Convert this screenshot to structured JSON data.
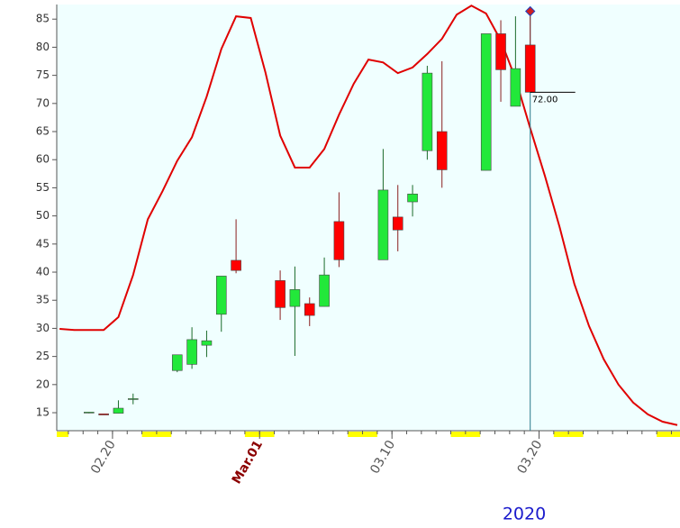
{
  "chart_data": {
    "type": "candlestick",
    "background": "#f0ffff",
    "up_color": "#22e83a",
    "down_color": "#ff0000",
    "x": [
      "2020-02-18",
      "2020-02-19",
      "2020-02-20",
      "2020-02-21",
      "2020-02-24",
      "2020-02-25",
      "2020-02-26",
      "2020-02-27",
      "2020-02-28",
      "2020-03-02",
      "2020-03-03",
      "2020-03-04",
      "2020-03-05",
      "2020-03-06",
      "2020-03-09",
      "2020-03-10",
      "2020-03-11",
      "2020-03-12",
      "2020-03-13",
      "2020-03-16",
      "2020-03-17",
      "2020-03-18",
      "2020-03-19"
    ],
    "open": [
      15.0,
      14.8,
      14.9,
      17.4,
      22.5,
      23.6,
      27.0,
      32.5,
      42.1,
      38.5,
      33.9,
      34.4,
      33.9,
      49.0,
      42.2,
      49.8,
      52.5,
      61.6,
      65.0,
      58.1,
      82.4,
      69.5,
      80.4
    ],
    "high": [
      15.1,
      14.8,
      17.2,
      18.4,
      25.3,
      30.2,
      29.6,
      39.3,
      49.4,
      40.3,
      41.0,
      35.5,
      42.6,
      54.2,
      61.9,
      55.5,
      55.5,
      76.7,
      77.5,
      82.4,
      84.8,
      85.5,
      86.4
    ],
    "low": [
      14.9,
      14.6,
      14.9,
      16.5,
      22.2,
      22.8,
      24.9,
      29.4,
      39.8,
      31.5,
      25.1,
      30.4,
      33.9,
      40.9,
      42.2,
      43.7,
      49.9,
      60.0,
      55.0,
      58.1,
      70.3,
      69.5,
      72.0
    ],
    "close": [
      15.1,
      14.6,
      15.8,
      17.5,
      25.3,
      28.0,
      27.8,
      39.3,
      40.3,
      33.7,
      36.9,
      32.3,
      39.5,
      42.2,
      54.6,
      47.5,
      53.9,
      75.4,
      58.2,
      82.4,
      76.0,
      76.2,
      72.0
    ],
    "last_close_label": "72.00",
    "marker_date": "2020-03-19",
    "line": {
      "color": "#e00000",
      "x": [
        "2020-02-16",
        "2020-02-17",
        "2020-02-18",
        "2020-02-19",
        "2020-02-20",
        "2020-02-21",
        "2020-02-22",
        "2020-02-23",
        "2020-02-24",
        "2020-02-25",
        "2020-02-26",
        "2020-02-27",
        "2020-02-28",
        "2020-02-29",
        "2020-03-01",
        "2020-03-02",
        "2020-03-03",
        "2020-03-04",
        "2020-03-05",
        "2020-03-06",
        "2020-03-07",
        "2020-03-08",
        "2020-03-09",
        "2020-03-10",
        "2020-03-11",
        "2020-03-12",
        "2020-03-13",
        "2020-03-14",
        "2020-03-15",
        "2020-03-16",
        "2020-03-17",
        "2020-03-18",
        "2020-03-19",
        "2020-03-20",
        "2020-03-21",
        "2020-03-22",
        "2020-03-23",
        "2020-03-24",
        "2020-03-25",
        "2020-03-26",
        "2020-03-27",
        "2020-03-28",
        "2020-03-29"
      ],
      "values": [
        29.9,
        29.7,
        29.7,
        29.7,
        32.0,
        39.5,
        49.4,
        54.4,
        59.8,
        64.0,
        71.2,
        79.7,
        85.5,
        85.2,
        75.5,
        64.3,
        58.6,
        58.6,
        61.9,
        68.0,
        73.5,
        77.8,
        77.3,
        75.4,
        76.4,
        78.8,
        81.5,
        85.8,
        87.4,
        86.0,
        81.2,
        74.4,
        65.6,
        57.1,
        48.0,
        37.9,
        30.4,
        24.5,
        20.0,
        16.8,
        14.7,
        13.4,
        12.8
      ]
    },
    "xlim": [
      "2020-02-16T05:00Z",
      "2020-03-29T14:00Z"
    ],
    "xticks": [
      {
        "value": "2020-02-20",
        "label": "02.20"
      },
      {
        "value": "2020-03-01",
        "label": "Mar.01"
      },
      {
        "value": "2020-03-10",
        "label": "03.10"
      },
      {
        "value": "2020-03-20",
        "label": "03.20"
      }
    ],
    "year_label": "2020",
    "ylim": [
      11.8,
      87.6
    ],
    "yticks": [
      15,
      20,
      25,
      30,
      35,
      40,
      45,
      50,
      55,
      60,
      65,
      70,
      75,
      80,
      85
    ]
  }
}
